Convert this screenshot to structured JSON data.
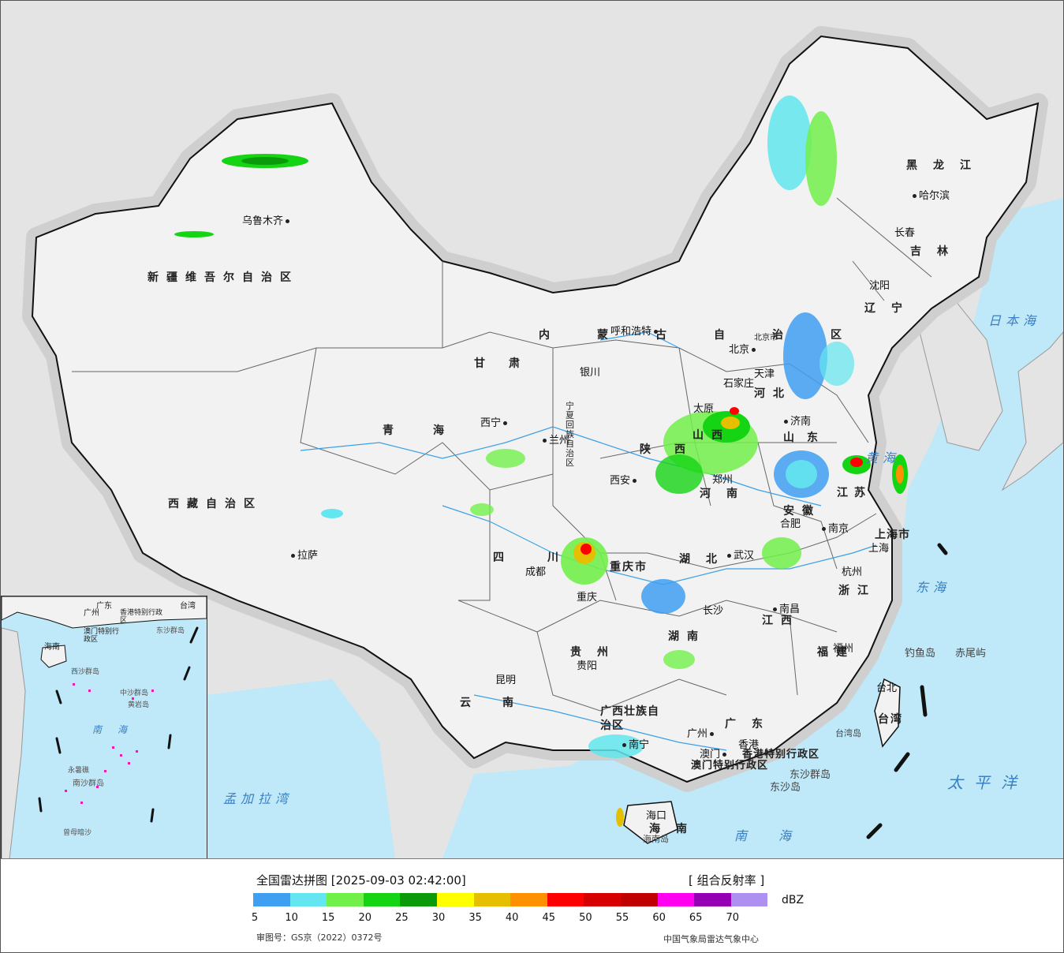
{
  "header": {
    "title": "全国雷达拼图 [2025-09-03 02:42:00]",
    "product": "[ 组合反射率 ]"
  },
  "legend": {
    "unit": "dBZ",
    "ticks": [
      "5",
      "10",
      "15",
      "20",
      "25",
      "30",
      "35",
      "40",
      "45",
      "50",
      "55",
      "60",
      "65",
      "70"
    ],
    "colors": [
      "#3f9ff1",
      "#63e6ef",
      "#72f04a",
      "#14d414",
      "#0a9a0a",
      "#ffff00",
      "#e6c000",
      "#ff9000",
      "#ff0000",
      "#d60000",
      "#c00000",
      "#ff00f0",
      "#9600b4",
      "#ad90f0"
    ]
  },
  "footer": {
    "approval": "审图号：GS京（2022）0372号",
    "credit": "中国气象局雷达气象中心"
  },
  "colors": {
    "land": "#f2f2f2",
    "outside": "#e4e4e4",
    "sea": "#bfe8f9",
    "border": "#111111",
    "river": "#3aa0e6"
  },
  "provinces": [
    {
      "name": "新疆维吾尔自治区"
    },
    {
      "name": "西藏自治区"
    },
    {
      "name": "青海"
    },
    {
      "name": "甘肃"
    },
    {
      "name": "内蒙古自治区"
    },
    {
      "name": "黑龙江"
    },
    {
      "name": "吉林"
    },
    {
      "name": "辽宁"
    },
    {
      "name": "河北"
    },
    {
      "name": "山西"
    },
    {
      "name": "陕西"
    },
    {
      "name": "山东"
    },
    {
      "name": "河南"
    },
    {
      "name": "江苏"
    },
    {
      "name": "安徽"
    },
    {
      "name": "湖北"
    },
    {
      "name": "四川"
    },
    {
      "name": "重庆市"
    },
    {
      "name": "浙江"
    },
    {
      "name": "江西"
    },
    {
      "name": "湖南"
    },
    {
      "name": "贵州"
    },
    {
      "name": "福建"
    },
    {
      "name": "云南"
    },
    {
      "name": "广西壮族自治区"
    },
    {
      "name": "广东"
    },
    {
      "name": "海南"
    },
    {
      "name": "台湾"
    },
    {
      "name": "上海市"
    },
    {
      "name": "宁夏回族自治区"
    },
    {
      "name": "香港特别行政区"
    },
    {
      "name": "澳门特别行政区"
    }
  ],
  "cities": [
    {
      "name": "乌鲁木齐"
    },
    {
      "name": "哈尔滨"
    },
    {
      "name": "长春"
    },
    {
      "name": "沈阳"
    },
    {
      "name": "呼和浩特"
    },
    {
      "name": "北京"
    },
    {
      "name": "天津"
    },
    {
      "name": "石家庄"
    },
    {
      "name": "太原"
    },
    {
      "name": "济南"
    },
    {
      "name": "银川"
    },
    {
      "name": "西宁"
    },
    {
      "name": "兰州"
    },
    {
      "name": "西安"
    },
    {
      "name": "郑州"
    },
    {
      "name": "合肥"
    },
    {
      "name": "南京"
    },
    {
      "name": "上海"
    },
    {
      "name": "杭州"
    },
    {
      "name": "武汉"
    },
    {
      "name": "成都"
    },
    {
      "name": "重庆"
    },
    {
      "name": "长沙"
    },
    {
      "name": "南昌"
    },
    {
      "name": "福州"
    },
    {
      "name": "台北"
    },
    {
      "name": "贵阳"
    },
    {
      "name": "昆明"
    },
    {
      "name": "南宁"
    },
    {
      "name": "广州"
    },
    {
      "name": "香港"
    },
    {
      "name": "澳门"
    },
    {
      "name": "海口"
    },
    {
      "name": "拉萨"
    }
  ],
  "seas": [
    {
      "name": "日本海"
    },
    {
      "name": "黄海"
    },
    {
      "name": "东海"
    },
    {
      "name": "太平洋"
    },
    {
      "name": "南海"
    },
    {
      "name": "孟加拉湾"
    }
  ],
  "islands": [
    {
      "name": "钓鱼岛"
    },
    {
      "name": "赤尾屿"
    },
    {
      "name": "台湾岛"
    },
    {
      "name": "东沙群岛"
    },
    {
      "name": "东沙岛"
    },
    {
      "name": "海南岛"
    },
    {
      "name": "北京市"
    }
  ],
  "inset": {
    "labels": [
      "海南",
      "广州",
      "广东",
      "台湾",
      "香港特别行政区",
      "澳门特别行政区",
      "东沙群岛",
      "西沙群岛",
      "中沙群岛",
      "南海",
      "南沙群岛",
      "黄岩岛",
      "永暑礁",
      "曾母暗沙"
    ]
  }
}
